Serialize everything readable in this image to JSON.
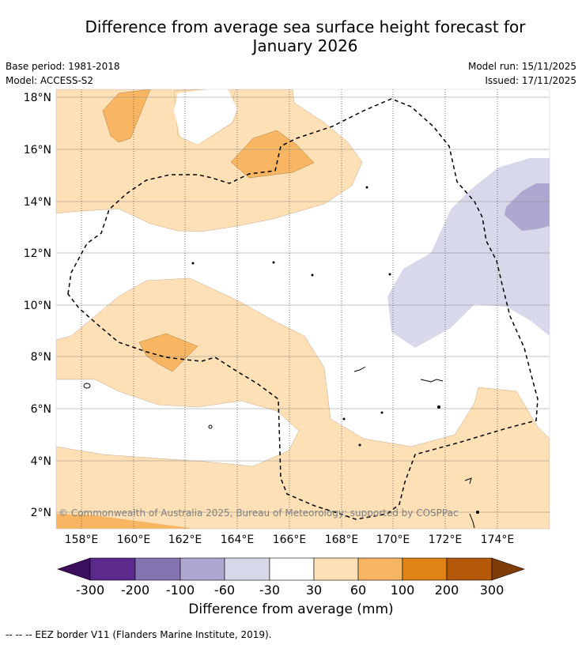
{
  "header": {
    "title_line1": "Difference from average sea surface height forecast for",
    "title_line2": "January 2026",
    "base_period": "Base period: 1981-2018",
    "model": "Model: ACCESS-S2",
    "model_run": "Model run: 15/11/2025",
    "issued": "Issued: 17/11/2025"
  },
  "map": {
    "lat_labels": [
      "18°N",
      "16°N",
      "14°N",
      "12°N",
      "10°N",
      "8°N",
      "6°N",
      "4°N",
      "2°N"
    ],
    "lon_labels": [
      "158°E",
      "160°E",
      "162°E",
      "164°E",
      "166°E",
      "168°E",
      "170°E",
      "172°E",
      "174°E"
    ],
    "copyright": "© Commonwealth of Australia 2025, Bureau of Meteorology; supported by COSPPac"
  },
  "colorbar": {
    "labels": [
      "-300",
      "-200",
      "-100",
      "-60",
      "-30",
      "30",
      "60",
      "100",
      "200",
      "300"
    ],
    "colors": [
      "#3b0f5e",
      "#5c2a8c",
      "#8475b0",
      "#aea7d0",
      "#d8d8eb",
      "#ffffff",
      "#fde0b6",
      "#f8b562",
      "#e08214",
      "#b35806",
      "#7f3b08"
    ],
    "title": "Difference from average (mm)"
  },
  "footnote": "--  --  -- EEZ border V11 (Flanders Marine Institute, 2019)."
}
